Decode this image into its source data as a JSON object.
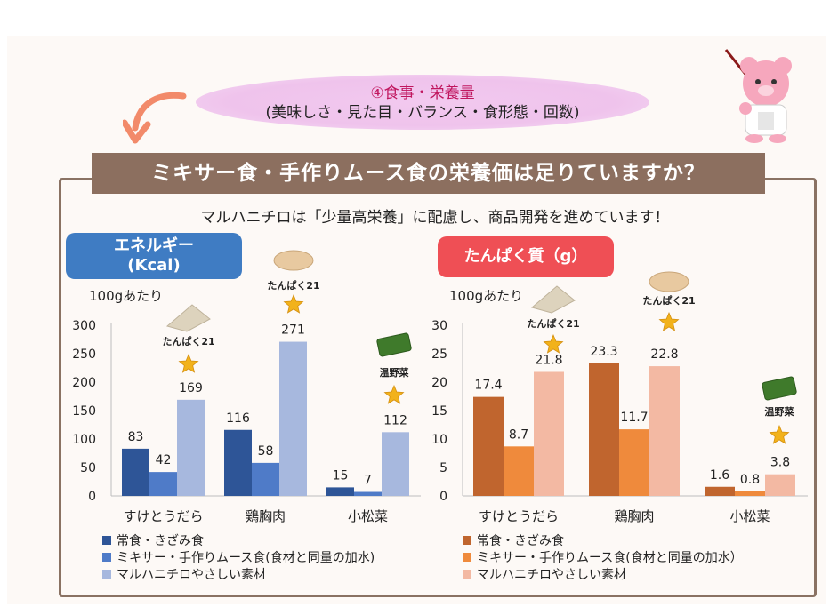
{
  "header": {
    "line1": "④食事・栄養量",
    "line2": "(美味しさ・見た目・バランス・食形態・回数)"
  },
  "banner": "ミキサー食・手作りムース食の栄養価は足りていますか？",
  "subtitle": "マルハニチロは「少量高栄養」に配慮し、商品開発を進めています！",
  "colors": {
    "banner_bg": "#8c6f5f",
    "energy_badge": "#3f7cc3",
    "protein_badge": "#ef4f55",
    "energy_series": [
      "#2e5597",
      "#4f7bc8",
      "#a7b8de"
    ],
    "protein_series": [
      "#c0652e",
      "#ef8a3c",
      "#f3b9a3"
    ],
    "star": "#f2b21b"
  },
  "icons": [
    "arrow-icon",
    "bear-teacher-icon",
    "tofu-icon",
    "chicken-icon",
    "vegetable-icon",
    "star-icon"
  ],
  "chart_data": [
    {
      "type": "bar",
      "title": "エネルギー (Kcal)",
      "title_line1": "エネルギー",
      "title_line2": "(Kcal)",
      "note": "100gあたり",
      "categories": [
        "すけとうだら",
        "鶏胸肉",
        "小松菜"
      ],
      "ylim": [
        0,
        300
      ],
      "yticks": [
        0,
        50,
        100,
        150,
        200,
        250,
        300
      ],
      "series": [
        {
          "name": "常食・きざみ食",
          "values": [
            83,
            116,
            15
          ]
        },
        {
          "name": "ミキサー・手作りムース食(食材と同量の加水)",
          "values": [
            42,
            58,
            7
          ]
        },
        {
          "name": "マルハニチロやさしい素材",
          "values": [
            169,
            271,
            112
          ]
        }
      ],
      "annotations": [
        "たんぱく21",
        "たんぱく21",
        "温野菜"
      ]
    },
    {
      "type": "bar",
      "title": "たんぱく質（g）",
      "note": "100gあたり",
      "categories": [
        "すけとうだら",
        "鶏胸肉",
        "小松菜"
      ],
      "ylim": [
        0,
        30
      ],
      "yticks": [
        0,
        5,
        10,
        15,
        20,
        25,
        30
      ],
      "series": [
        {
          "name": "常食・きざみ食",
          "values": [
            17.4,
            23.3,
            1.6
          ]
        },
        {
          "name": "ミキサー・手作りムース食(食材と同量の加水）",
          "values": [
            8.7,
            11.7,
            0.8
          ]
        },
        {
          "name": "マルハニチロやさしい素材",
          "values": [
            21.8,
            22.8,
            3.8
          ]
        }
      ],
      "annotations": [
        "たんぱく21",
        "たんぱく21",
        "温野菜"
      ]
    }
  ]
}
